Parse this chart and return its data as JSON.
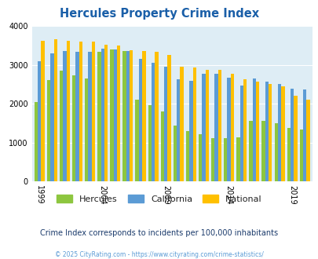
{
  "title": "Hercules Property Crime Index",
  "years": [
    1999,
    2000,
    2001,
    2002,
    2003,
    2004,
    2005,
    2006,
    2007,
    2008,
    2009,
    2010,
    2011,
    2012,
    2013,
    2014,
    2015,
    2016,
    2017,
    2018,
    2019,
    2020
  ],
  "hercules": [
    2050,
    2600,
    2850,
    2720,
    2650,
    3330,
    3390,
    3350,
    2100,
    1950,
    1800,
    1430,
    1300,
    1220,
    1120,
    1120,
    1130,
    1560,
    1560,
    1490,
    1370,
    1330
  ],
  "california": [
    3100,
    3300,
    3350,
    3340,
    3340,
    3420,
    3390,
    3350,
    3150,
    3050,
    2950,
    2620,
    2580,
    2760,
    2760,
    2670,
    2460,
    2640,
    2560,
    2500,
    2390,
    2370
  ],
  "national": [
    3620,
    3660,
    3620,
    3600,
    3600,
    3520,
    3490,
    3380,
    3350,
    3330,
    3250,
    2950,
    2920,
    2870,
    2870,
    2760,
    2620,
    2560,
    2500,
    2450,
    2200,
    2100
  ],
  "color_hercules": "#8dc63f",
  "color_california": "#5b9bd5",
  "color_national": "#ffc000",
  "bg_color": "#deedf5",
  "ylim": [
    0,
    4000
  ],
  "yticks": [
    0,
    1000,
    2000,
    3000,
    4000
  ],
  "xlabel_tick_years": [
    1999,
    2004,
    2009,
    2014,
    2019
  ],
  "subtitle": "Crime Index corresponds to incidents per 100,000 inhabitants",
  "footer": "© 2025 CityRating.com - https://www.cityrating.com/crime-statistics/",
  "title_color": "#1a5fa8",
  "subtitle_color": "#1a3a6b",
  "footer_color": "#5b9bd5"
}
